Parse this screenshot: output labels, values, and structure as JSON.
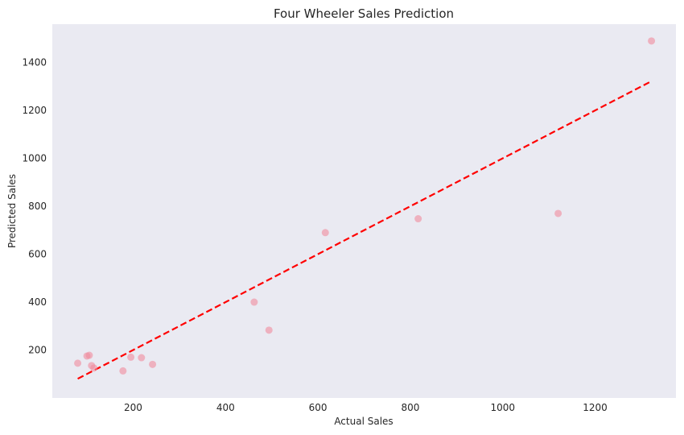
{
  "chart_data": {
    "type": "scatter",
    "title": "Four Wheeler Sales Prediction",
    "xlabel": "Actual Sales",
    "ylabel": "Predicted Sales",
    "xlim": [
      25,
      1375
    ],
    "ylim": [
      0,
      1560
    ],
    "xticks": [
      200,
      400,
      600,
      800,
      1000,
      1200
    ],
    "yticks": [
      200,
      400,
      600,
      800,
      1000,
      1200,
      1400
    ],
    "grid": false,
    "background_color": "#eaeaf2",
    "points": [
      {
        "x": 80,
        "y": 145
      },
      {
        "x": 100,
        "y": 175
      },
      {
        "x": 105,
        "y": 178
      },
      {
        "x": 110,
        "y": 135
      },
      {
        "x": 115,
        "y": 125
      },
      {
        "x": 178,
        "y": 113
      },
      {
        "x": 195,
        "y": 170
      },
      {
        "x": 218,
        "y": 168
      },
      {
        "x": 242,
        "y": 140
      },
      {
        "x": 462,
        "y": 400
      },
      {
        "x": 494,
        "y": 283
      },
      {
        "x": 616,
        "y": 690
      },
      {
        "x": 817,
        "y": 748
      },
      {
        "x": 1120,
        "y": 770
      },
      {
        "x": 1322,
        "y": 1490
      }
    ],
    "point_color": "#f08a9c",
    "point_opacity": 0.6,
    "reference_line": {
      "x": [
        80,
        1322
      ],
      "y": [
        80,
        1322
      ],
      "color": "#ff0000",
      "style": "dashed"
    }
  }
}
